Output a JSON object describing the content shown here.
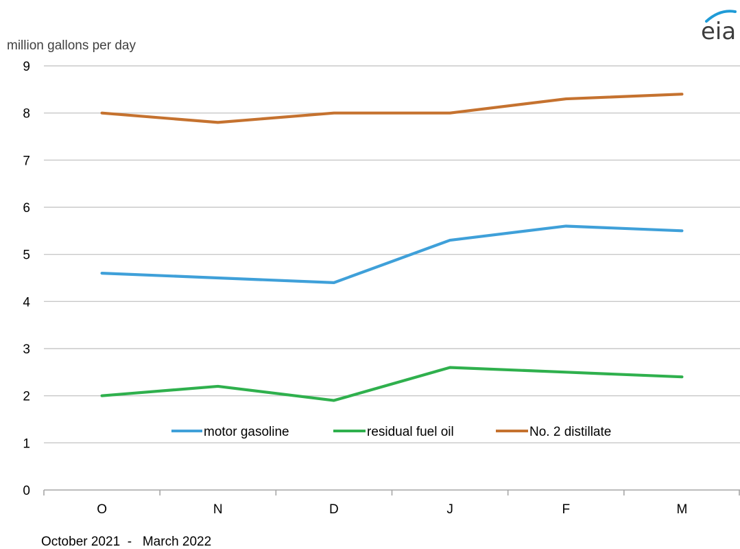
{
  "chart_data": {
    "type": "line",
    "ylabel": "million gallons per day",
    "xlabel": "October 2021  -   March 2022",
    "categories": [
      "O",
      "N",
      "D",
      "J",
      "F",
      "M"
    ],
    "ylim": [
      0,
      9
    ],
    "yticks": [
      0,
      1,
      2,
      3,
      4,
      5,
      6,
      7,
      8,
      9
    ],
    "grid": true,
    "legend_position": "bottom-center",
    "series": [
      {
        "name": "motor gasoline",
        "color": "#3fa0d9",
        "values": [
          4.6,
          4.5,
          4.4,
          5.3,
          5.6,
          5.5
        ]
      },
      {
        "name": "residual fuel oil",
        "color": "#2fb04d",
        "values": [
          2.0,
          2.2,
          1.9,
          2.6,
          2.5,
          2.4
        ]
      },
      {
        "name": "No. 2 distillate",
        "color": "#c5722f",
        "values": [
          8.0,
          7.8,
          8.0,
          8.0,
          8.3,
          8.4
        ]
      }
    ]
  },
  "logo": {
    "text": "eia",
    "swoosh_color": "#1f9bd7"
  }
}
